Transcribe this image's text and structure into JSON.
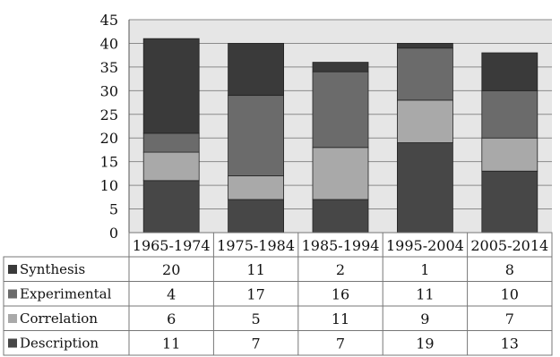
{
  "chart_data": {
    "type": "bar",
    "stacked": true,
    "categories": [
      "1965-1974",
      "1975-1984",
      "1985-1994",
      "1995-2004",
      "2005-2014"
    ],
    "series": [
      {
        "name": "Synthesis",
        "color": "#3a3a3a",
        "values": [
          20,
          11,
          2,
          1,
          8
        ]
      },
      {
        "name": "Experimental",
        "color": "#6b6b6b",
        "values": [
          4,
          17,
          16,
          11,
          10
        ]
      },
      {
        "name": "Correlation",
        "color": "#a9a9a9",
        "values": [
          6,
          5,
          11,
          9,
          7
        ]
      },
      {
        "name": "Description",
        "color": "#474747",
        "values": [
          11,
          7,
          7,
          19,
          13
        ]
      }
    ],
    "stack_order_bottom_to_top": [
      "Description",
      "Correlation",
      "Experimental",
      "Synthesis"
    ],
    "ylim": [
      0,
      45
    ],
    "yticks": [
      0,
      5,
      10,
      15,
      20,
      25,
      30,
      35,
      40,
      45
    ],
    "grid": true,
    "plot_background": "#e6e6e6",
    "legend": "data-table-below"
  }
}
